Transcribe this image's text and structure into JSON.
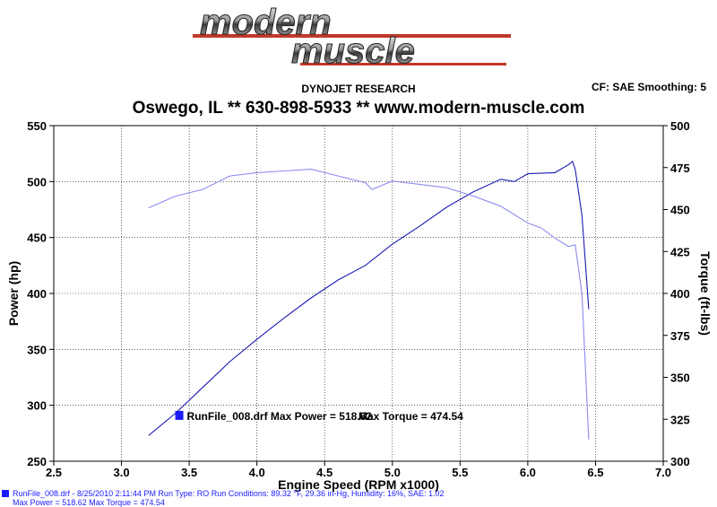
{
  "logo": {
    "line1": "modern",
    "line2": "muscle"
  },
  "header": {
    "company": "DYNOJET RESEARCH",
    "location_line": "Oswego, IL ** 630-898-5933 ** www.modern-muscle.com",
    "correction": "CF: SAE  Smoothing: 5"
  },
  "chart_data": {
    "type": "line",
    "xlabel": "Engine Speed (RPM x1000)",
    "ylabel_left": "Power (hp)",
    "ylabel_right": "Torque (ft-lbs)",
    "xlim": [
      2.5,
      7.0
    ],
    "ylim_left": [
      250,
      550
    ],
    "ylim_right": [
      300,
      500
    ],
    "x_ticks": [
      "2.5",
      "3.0",
      "3.5",
      "4.0",
      "4.5",
      "5.0",
      "5.5",
      "6.0",
      "6.5",
      "7.0"
    ],
    "y_ticks_left": [
      "550",
      "500",
      "450",
      "400",
      "350",
      "300",
      "250"
    ],
    "y_ticks_right": [
      "500",
      "475",
      "450",
      "425",
      "400",
      "375",
      "350",
      "325",
      "300"
    ],
    "grid": true,
    "legend": {
      "label": "RunFile_008.drf Max Power = 518.62",
      "max_torque": "Max Torque = 474.54",
      "color": "#1a1aff"
    },
    "series": [
      {
        "name": "Power",
        "axis": "left",
        "color": "#1a1ab4",
        "x": [
          3.2,
          3.4,
          3.6,
          3.8,
          4.0,
          4.2,
          4.4,
          4.6,
          4.8,
          5.0,
          5.2,
          5.4,
          5.6,
          5.8,
          5.9,
          6.0,
          6.2,
          6.3,
          6.33,
          6.35,
          6.4,
          6.45
        ],
        "y": [
          273,
          293,
          316,
          339,
          359,
          378,
          396,
          412,
          425,
          444,
          460,
          477,
          491,
          502,
          500,
          507,
          508,
          515,
          518,
          511,
          470,
          386
        ]
      },
      {
        "name": "Torque",
        "axis": "right",
        "color": "#8c8cf0",
        "x": [
          3.2,
          3.4,
          3.6,
          3.8,
          4.0,
          4.2,
          4.4,
          4.6,
          4.8,
          4.85,
          5.0,
          5.2,
          5.4,
          5.6,
          5.8,
          6.0,
          6.1,
          6.2,
          6.3,
          6.35,
          6.4,
          6.45
        ],
        "y": [
          451,
          458,
          462,
          470,
          472,
          473,
          474,
          470,
          466,
          462,
          467,
          465,
          463,
          458,
          452,
          442,
          439,
          433,
          428,
          429,
          400,
          313
        ]
      }
    ]
  },
  "footer": {
    "line1": "RunFile_008.drf - 8/25/2010 2:11:44 PM  Run Type: RO  Run Conditions: 89.32 °F, 29.36 in-Hg,  Humidity: 16%, SAE: 1.02",
    "line2": "Max Power = 518.62  Max Torque = 474.54"
  }
}
